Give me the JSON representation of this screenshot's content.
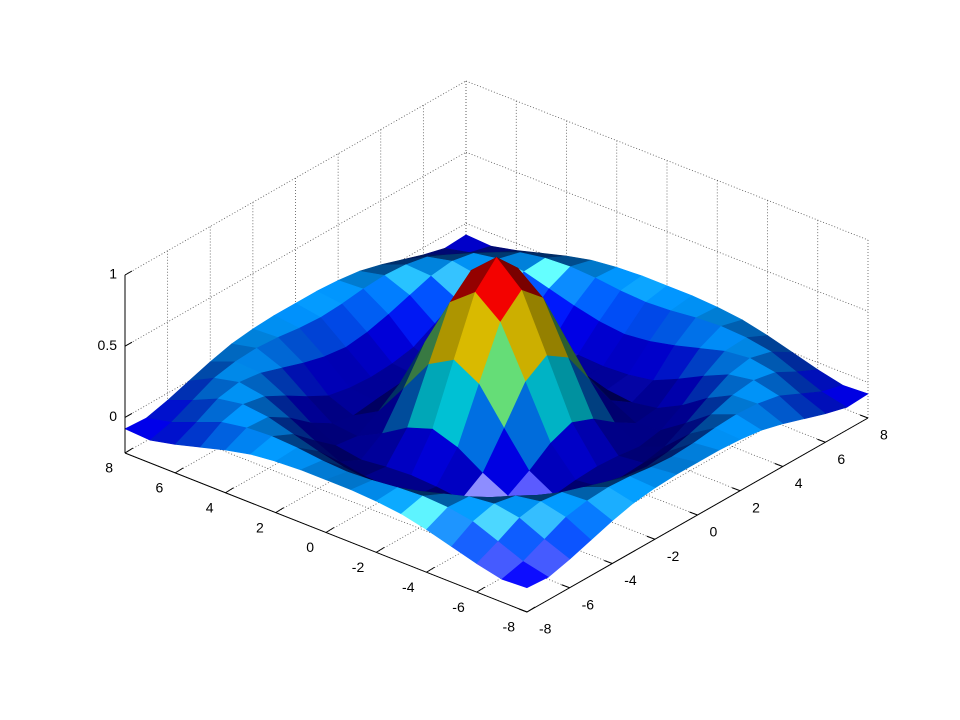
{
  "chart_data": {
    "type": "surface",
    "colormap": "jet",
    "grid": true,
    "x": [
      -8,
      -7,
      -6,
      -5,
      -4,
      -3,
      -2,
      -1,
      0,
      1,
      2,
      3,
      4,
      5,
      6,
      7,
      8
    ],
    "y": [
      -8,
      -7,
      -6,
      -5,
      -4,
      -3,
      -2,
      -1,
      0,
      1,
      2,
      3,
      4,
      5,
      6,
      7,
      8
    ],
    "z": [
      [
        -0.08,
        -0.09,
        -0.05,
        0,
        0.05,
        0.09,
        0.11,
        0.12,
        0.12,
        0.12,
        0.11,
        0.09,
        0.05,
        0,
        -0.05,
        -0.09,
        -0.08
      ],
      [
        -0.09,
        -0.05,
        0.02,
        0.09,
        0.12,
        0.13,
        0.12,
        0.1,
        0.09,
        0.1,
        0.12,
        0.13,
        0.12,
        0.09,
        0.02,
        -0.05,
        -0.09
      ],
      [
        -0.05,
        0.02,
        0.1,
        0.13,
        0.11,
        0.06,
        0.01,
        -0.03,
        -0.05,
        -0.03,
        0.01,
        0.06,
        0.11,
        0.13,
        0.1,
        0.02,
        -0.05
      ],
      [
        0,
        0.09,
        0.13,
        0.1,
        0.02,
        -0.07,
        -0.15,
        -0.18,
        -0.19,
        -0.18,
        -0.15,
        -0.07,
        0.02,
        0.1,
        0.13,
        0.09,
        0
      ],
      [
        0.05,
        0.12,
        0.11,
        0.02,
        -0.1,
        -0.19,
        -0.22,
        -0.2,
        -0.19,
        -0.2,
        -0.22,
        -0.19,
        -0.1,
        0.02,
        0.11,
        0.12,
        0.05
      ],
      [
        0.09,
        0.13,
        0.06,
        -0.07,
        -0.19,
        -0.21,
        -0.12,
        -0.01,
        0.05,
        -0.01,
        -0.12,
        -0.21,
        -0.19,
        -0.07,
        0.06,
        0.13,
        0.09
      ],
      [
        0.11,
        0.12,
        0.01,
        -0.15,
        -0.22,
        -0.12,
        0.11,
        0.35,
        0.45,
        0.35,
        0.11,
        -0.12,
        -0.22,
        -0.15,
        0.01,
        0.12,
        0.11
      ],
      [
        0.12,
        0.1,
        -0.03,
        -0.18,
        -0.2,
        -0.01,
        0.35,
        0.7,
        0.84,
        0.7,
        0.35,
        -0.01,
        -0.2,
        -0.18,
        -0.03,
        0.1,
        0.12
      ],
      [
        0.12,
        0.09,
        -0.05,
        -0.19,
        -0.19,
        0.05,
        0.45,
        0.84,
        1,
        0.84,
        0.45,
        0.05,
        -0.19,
        -0.19,
        -0.05,
        0.09,
        0.12
      ],
      [
        0.12,
        0.1,
        -0.03,
        -0.18,
        -0.2,
        -0.01,
        0.35,
        0.7,
        0.84,
        0.7,
        0.35,
        -0.01,
        -0.2,
        -0.18,
        -0.03,
        0.1,
        0.12
      ],
      [
        0.11,
        0.12,
        0.01,
        -0.15,
        -0.22,
        -0.12,
        0.11,
        0.35,
        0.45,
        0.35,
        0.11,
        -0.12,
        -0.22,
        -0.15,
        0.01,
        0.12,
        0.11
      ],
      [
        0.09,
        0.13,
        0.06,
        -0.07,
        -0.19,
        -0.21,
        -0.12,
        -0.01,
        0.05,
        -0.01,
        -0.12,
        -0.21,
        -0.19,
        -0.07,
        0.06,
        0.13,
        0.09
      ],
      [
        0.05,
        0.12,
        0.11,
        0.02,
        -0.1,
        -0.19,
        -0.22,
        -0.2,
        -0.19,
        -0.2,
        -0.22,
        -0.19,
        -0.1,
        0.02,
        0.11,
        0.12,
        0.05
      ],
      [
        0,
        0.09,
        0.13,
        0.1,
        0.02,
        -0.07,
        -0.15,
        -0.18,
        -0.19,
        -0.18,
        -0.15,
        -0.07,
        0.02,
        0.1,
        0.13,
        0.09,
        0
      ],
      [
        -0.05,
        0.02,
        0.1,
        0.13,
        0.11,
        0.06,
        0.01,
        -0.03,
        -0.05,
        -0.03,
        0.01,
        0.06,
        0.11,
        0.13,
        0.1,
        0.02,
        -0.05
      ],
      [
        -0.09,
        -0.05,
        0.02,
        0.09,
        0.12,
        0.13,
        0.12,
        0.1,
        0.09,
        0.1,
        0.12,
        0.13,
        0.12,
        0.09,
        0.02,
        -0.05,
        -0.09
      ],
      [
        -0.08,
        -0.09,
        -0.05,
        0,
        0.05,
        0.09,
        0.11,
        0.12,
        0.12,
        0.12,
        0.11,
        0.09,
        0.05,
        0,
        -0.05,
        -0.09,
        -0.08
      ]
    ],
    "xlim": [
      -8,
      8
    ],
    "ylim": [
      -8,
      8
    ],
    "zlim": [
      -0.25,
      1
    ],
    "xticks": [
      -8,
      -6,
      -4,
      -2,
      0,
      2,
      4,
      6,
      8
    ],
    "yticks": [
      -8,
      -6,
      -4,
      -2,
      0,
      2,
      4,
      6,
      8
    ],
    "zticks": [
      0,
      0.5,
      1
    ]
  }
}
